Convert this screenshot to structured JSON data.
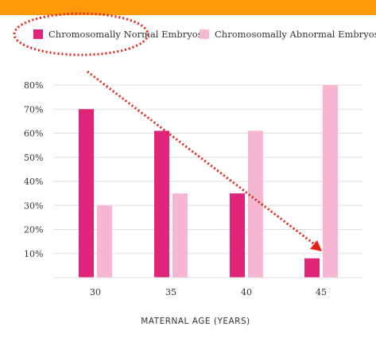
{
  "colors": {
    "top_bar": "#ff9b0a",
    "normal": "#e0247a",
    "abnormal": "#f7b6d2",
    "annotation": "#e2231a",
    "grid": "#dddddd"
  },
  "chart_data": {
    "type": "bar",
    "categories": [
      "30",
      "35",
      "40",
      "45"
    ],
    "series": [
      {
        "name": "Chromosomally Normal Embryos",
        "values": [
          70,
          61,
          35,
          8
        ]
      },
      {
        "name": "Chromosomally Abnormal Embryos",
        "values": [
          30,
          35,
          61,
          80
        ]
      }
    ],
    "y_ticks": [
      "10%",
      "20%",
      "30%",
      "40%",
      "50%",
      "60%",
      "70%",
      "80%"
    ],
    "ylim": [
      0,
      80
    ],
    "xlabel": "MATERNAL AGE (YEARS)",
    "ylabel": "",
    "grid": true,
    "legend_position": "top",
    "annotations": [
      "red dotted ellipse around the Chromosomally Normal Embryos legend entry",
      "red dotted arrow showing declining trend from 30 to 45"
    ]
  }
}
